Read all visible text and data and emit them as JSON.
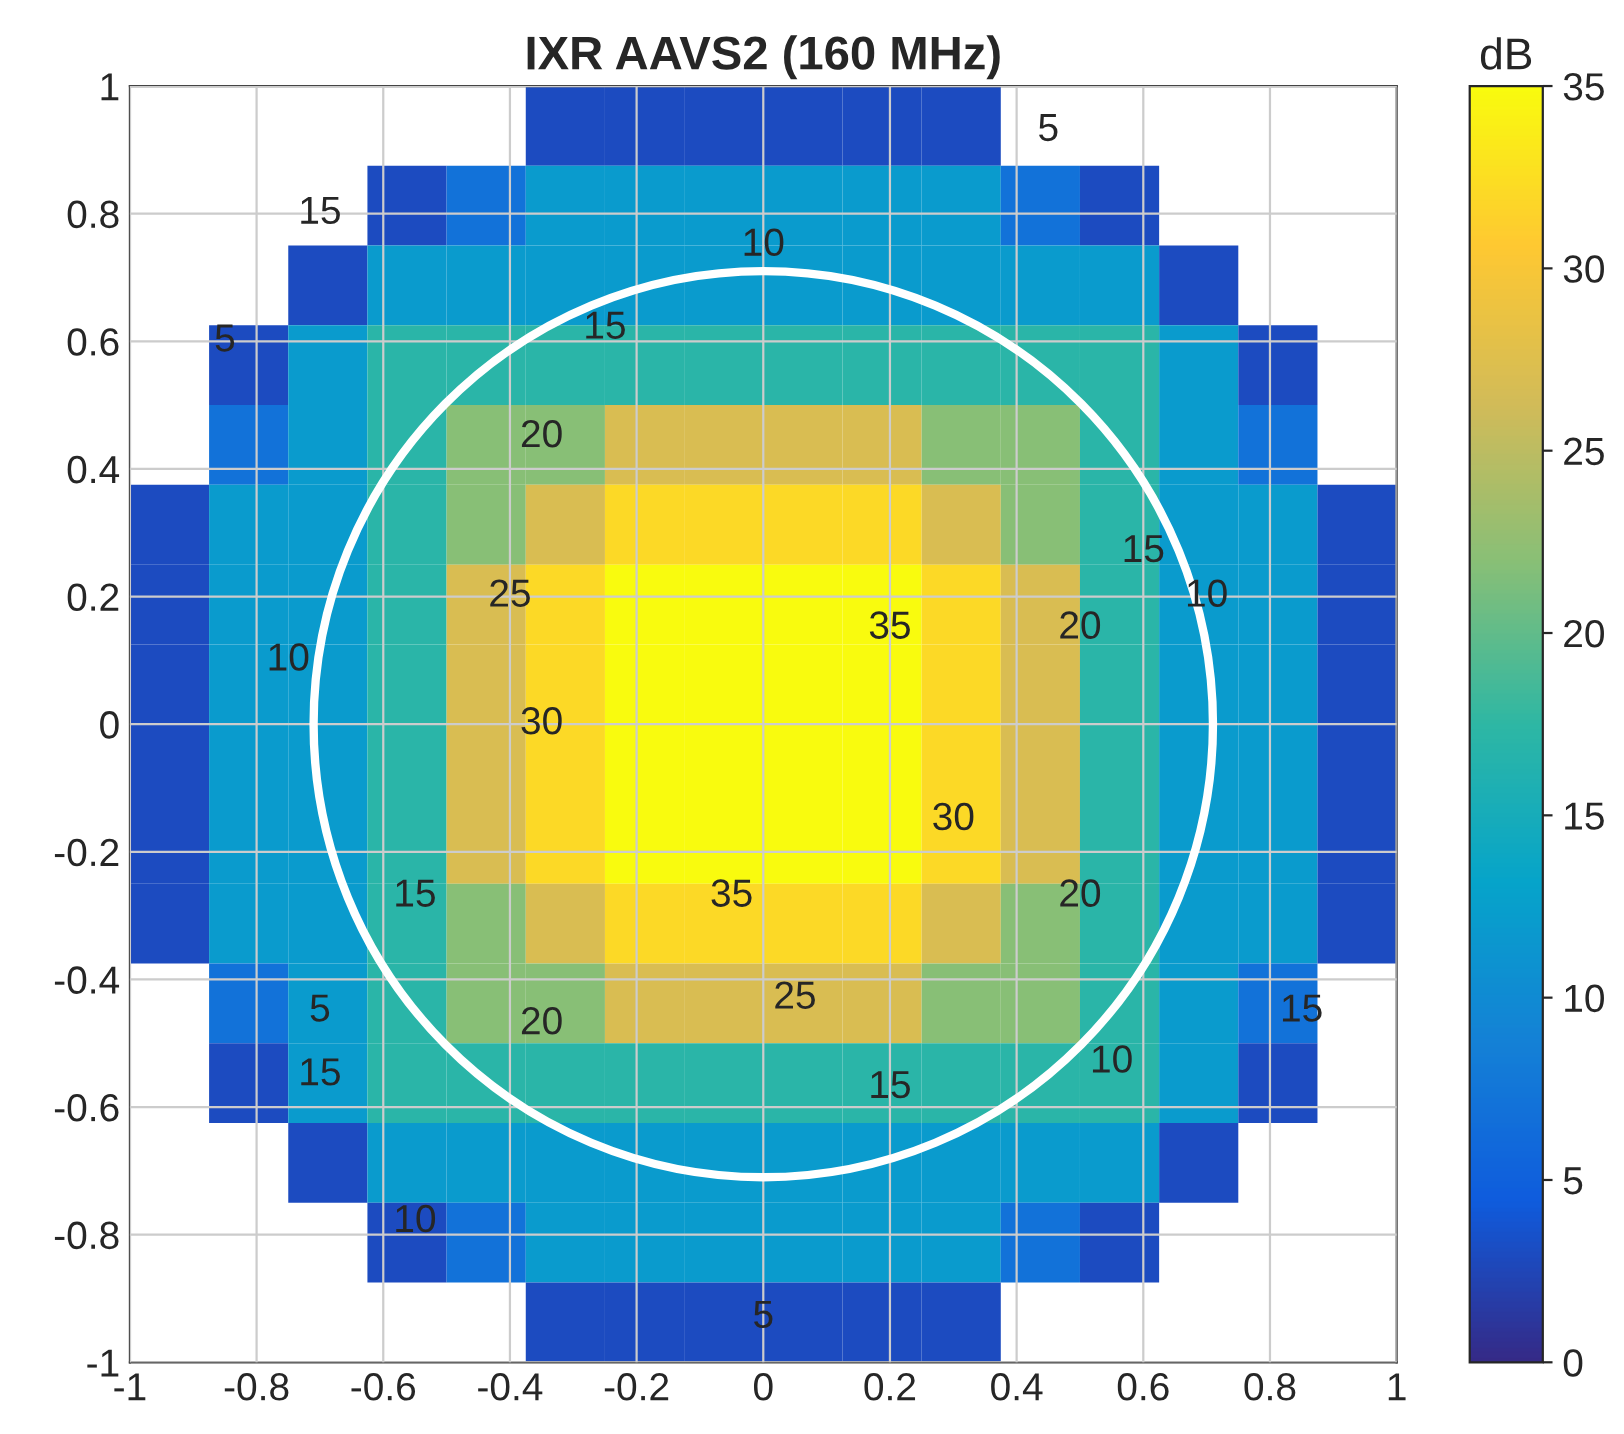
{
  "chart_data": {
    "type": "heatmap",
    "title": "IXR AAVS2 (160 MHz)",
    "clabel": "dB",
    "xlim": [
      -1,
      1
    ],
    "ylim": [
      -1,
      1
    ],
    "xticks": [
      -1,
      -0.8,
      -0.6,
      -0.4,
      -0.2,
      0,
      0.2,
      0.4,
      0.6,
      0.8,
      1
    ],
    "yticks": [
      -1,
      -0.8,
      -0.6,
      -0.4,
      -0.2,
      0,
      0.2,
      0.4,
      0.6,
      0.8,
      1
    ],
    "clim": [
      0,
      35
    ],
    "cticks": [
      0,
      5,
      10,
      15,
      20,
      25,
      30,
      35
    ],
    "grid": true,
    "cells": [
      [
        null,
        null,
        null,
        null,
        null,
        3,
        3,
        3,
        3,
        3,
        3,
        null,
        null,
        null,
        null,
        null
      ],
      [
        null,
        null,
        null,
        3,
        7,
        12,
        12,
        12,
        12,
        12,
        12,
        7,
        3,
        null,
        null,
        null
      ],
      [
        null,
        null,
        3,
        12,
        12,
        12,
        12,
        12,
        12,
        12,
        12,
        12,
        12,
        3,
        null,
        null
      ],
      [
        null,
        3,
        12,
        17,
        17,
        17,
        17,
        17,
        17,
        17,
        17,
        17,
        17,
        12,
        3,
        null
      ],
      [
        null,
        7,
        12,
        17,
        22,
        22,
        27,
        27,
        27,
        27,
        22,
        22,
        17,
        12,
        7,
        null
      ],
      [
        3,
        12,
        12,
        17,
        22,
        27,
        32,
        32,
        32,
        32,
        27,
        22,
        17,
        12,
        12,
        3
      ],
      [
        3,
        12,
        12,
        17,
        27,
        32,
        35,
        35,
        35,
        35,
        32,
        27,
        17,
        12,
        12,
        3
      ],
      [
        3,
        12,
        12,
        17,
        27,
        32,
        35,
        35,
        35,
        35,
        32,
        27,
        17,
        12,
        12,
        3
      ],
      [
        3,
        12,
        12,
        17,
        27,
        32,
        35,
        35,
        35,
        35,
        32,
        27,
        17,
        12,
        12,
        3
      ],
      [
        3,
        12,
        12,
        17,
        27,
        32,
        35,
        35,
        35,
        35,
        32,
        27,
        17,
        12,
        12,
        3
      ],
      [
        3,
        12,
        12,
        17,
        22,
        27,
        32,
        32,
        32,
        32,
        27,
        22,
        17,
        12,
        12,
        3
      ],
      [
        null,
        7,
        12,
        17,
        22,
        22,
        27,
        27,
        27,
        27,
        22,
        22,
        17,
        12,
        7,
        null
      ],
      [
        null,
        3,
        12,
        17,
        17,
        17,
        17,
        17,
        17,
        17,
        17,
        17,
        17,
        12,
        3,
        null
      ],
      [
        null,
        null,
        3,
        12,
        12,
        12,
        12,
        12,
        12,
        12,
        12,
        12,
        12,
        3,
        null,
        null
      ],
      [
        null,
        null,
        null,
        3,
        7,
        12,
        12,
        12,
        12,
        12,
        12,
        7,
        3,
        null,
        null,
        null
      ],
      [
        null,
        null,
        null,
        null,
        null,
        3,
        3,
        3,
        3,
        3,
        3,
        null,
        null,
        null,
        null,
        null
      ]
    ],
    "annotations": [
      "10",
      "15",
      "20",
      "25",
      "30",
      "35",
      "35",
      "30",
      "25",
      "20",
      "15",
      "10",
      "10",
      "15",
      "20",
      "20",
      "15",
      "10",
      "10",
      "5",
      "5",
      "15",
      "5",
      "5",
      "15",
      "15"
    ]
  }
}
